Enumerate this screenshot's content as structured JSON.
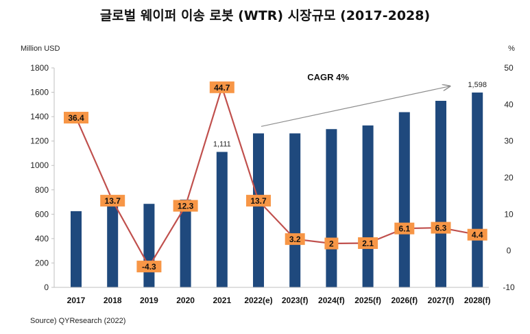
{
  "title": "글로벌 웨이퍼 이송 로봇 (WTR) 시장규모 (2017-2028)",
  "source": "Source) QYResearch (2022)",
  "chart_data": {
    "type": "bar",
    "title": "글로벌 웨이퍼 이송 로봇 (WTR) 시장규모 (2017-2028)",
    "categories": [
      "2017",
      "2018",
      "2019",
      "2020",
      "2021",
      "2022(e)",
      "2023(f)",
      "2024(f)",
      "2025(f)",
      "2026(f)",
      "2027(f)",
      "2028(f)"
    ],
    "series": [
      {
        "type": "bar",
        "axis": "left",
        "values": [
          625,
          715,
          685,
          720,
          1111,
          1263,
          1263,
          1298,
          1328,
          1437,
          1530,
          1598
        ],
        "data_labels": [
          "",
          "",
          "",
          "",
          "1,111",
          "",
          "",
          "",
          "",
          "",
          "",
          "1,598"
        ],
        "color": "#1f497d"
      },
      {
        "type": "line",
        "axis": "right",
        "values": [
          36.4,
          13.7,
          -4.3,
          12.3,
          44.7,
          13.7,
          3.2,
          2,
          2.1,
          6.1,
          6.3,
          4.4
        ],
        "data_labels": [
          "36.4",
          "13.7",
          "-4.3",
          "12.3",
          "44.7",
          "13.7",
          "3.2",
          "2",
          "2.1",
          "6.1",
          "6.3",
          "4.4"
        ],
        "color": "#c0504d",
        "label_bg": "#f79646"
      }
    ],
    "ylabel_left": "Million USD",
    "ylabel_right": "%",
    "ylim_left": [
      0,
      1800
    ],
    "yticks_left": [
      "0",
      "200",
      "400",
      "600",
      "800",
      "1000",
      "1200",
      "1400",
      "1600",
      "1800"
    ],
    "ylim_right": [
      -10,
      50
    ],
    "yticks_right": [
      "-10",
      "0",
      "10",
      "20",
      "30",
      "40",
      "50"
    ],
    "grid": false,
    "annotation": {
      "text": "CAGR 4%",
      "from_category": "2022(e)",
      "to_category": "2028(f)",
      "from_value": 1320,
      "to_value": 1650
    }
  }
}
